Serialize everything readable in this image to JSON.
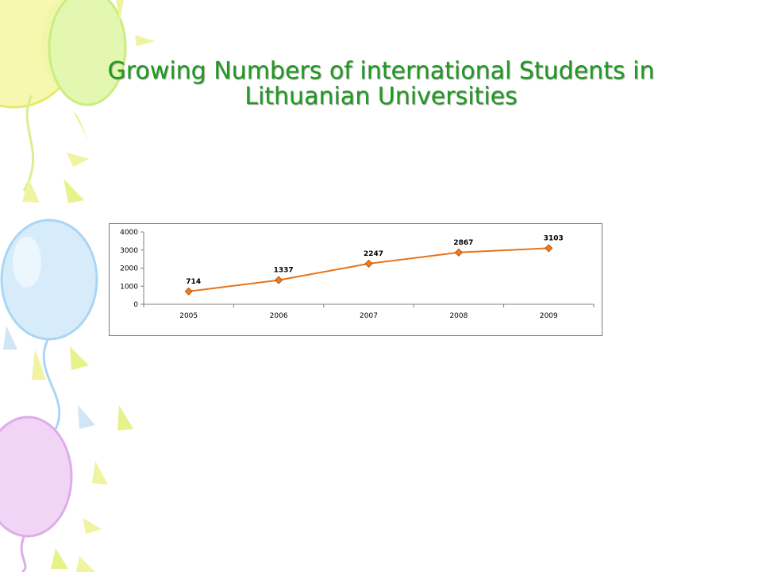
{
  "slide": {
    "title_line1": "Growing Numbers of international Students in",
    "title_line2": "Lithuanian Universities"
  },
  "colors": {
    "title": "#1f9a1f",
    "series_line": "#e8731a",
    "marker_fill": "#f07a1e",
    "balloon_yellow": "#f6f6a8",
    "balloon_green": "#dff7a8",
    "balloon_blue": "#cfe9fb",
    "balloon_purple": "#eecbf3"
  },
  "chart_data": {
    "type": "line",
    "categories": [
      "2005",
      "2006",
      "2007",
      "2008",
      "2009"
    ],
    "series": [
      {
        "values": [
          714,
          1337,
          2247,
          2867,
          3103
        ]
      }
    ],
    "data_labels": [
      "714",
      "1337",
      "2247",
      "2867",
      "3103"
    ],
    "y_ticks": [
      "0",
      "1000",
      "2000",
      "3000",
      "4000"
    ],
    "ylim": [
      0,
      4000
    ],
    "title": "",
    "xlabel": "",
    "ylabel": "",
    "grid": false,
    "legend": "none",
    "marker": "diamond"
  }
}
